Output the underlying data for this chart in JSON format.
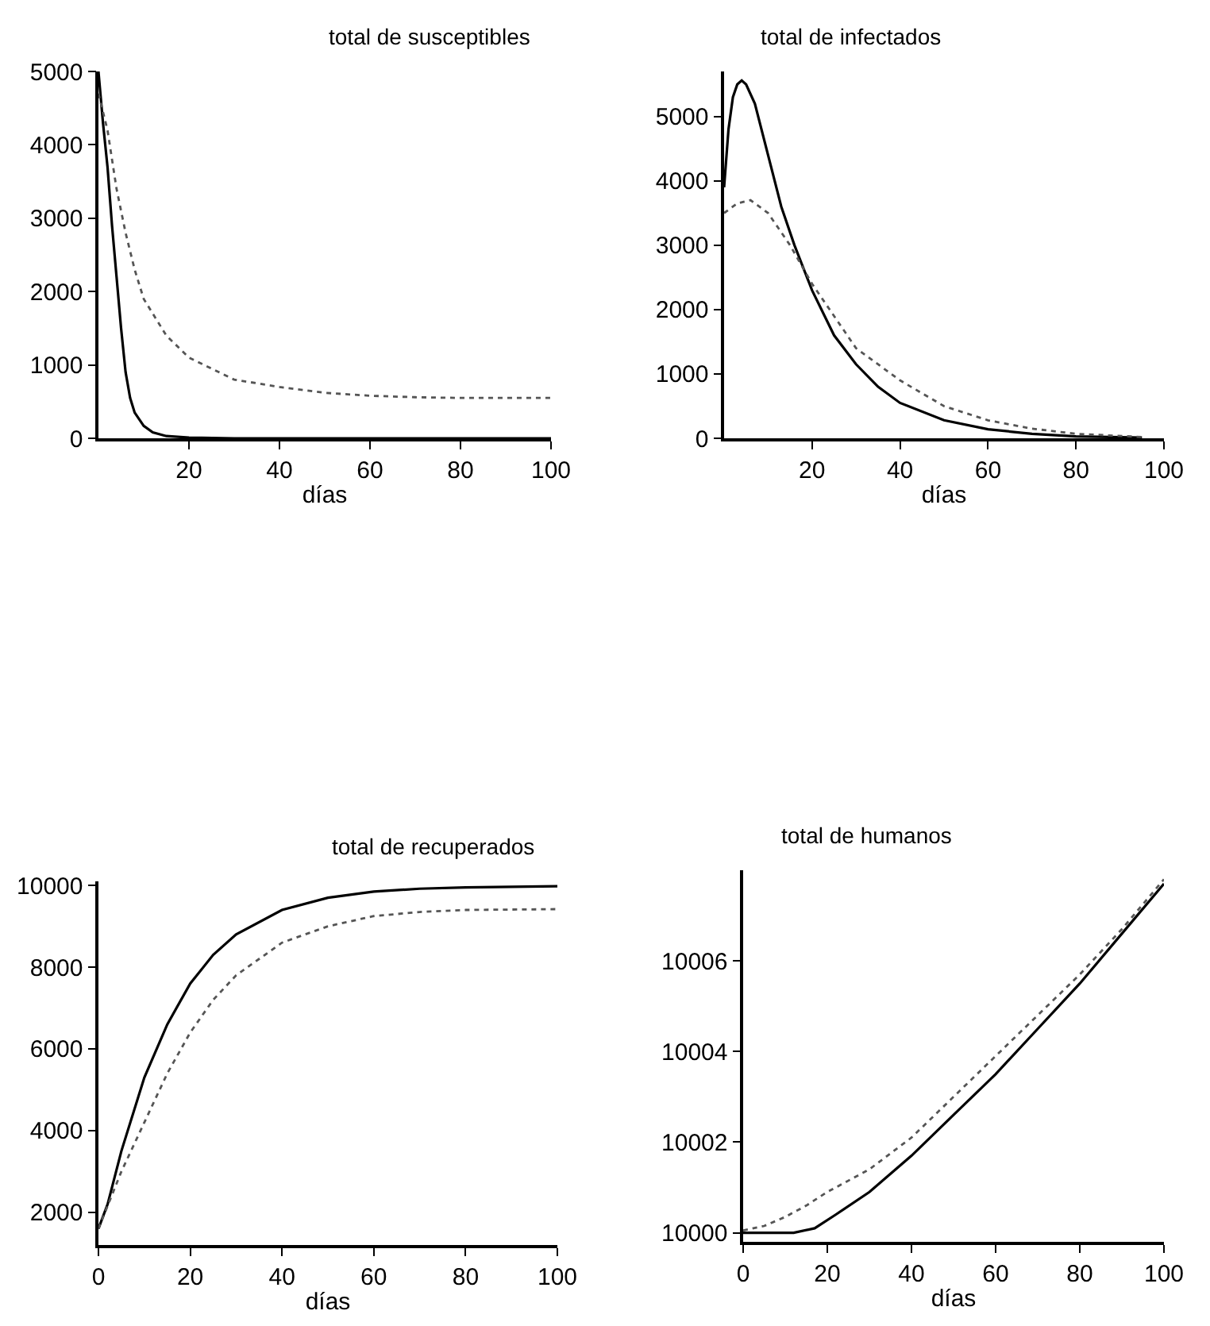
{
  "chart_data": [
    {
      "type": "line",
      "title": "total de susceptibles",
      "xlabel": "días",
      "xlim": [
        0,
        100
      ],
      "xticks": [
        20,
        40,
        60,
        80,
        100
      ],
      "ylim": [
        0,
        5000
      ],
      "yticks": [
        0,
        1000,
        2000,
        3000,
        4000,
        5000
      ],
      "marker": "none",
      "series": [
        {
          "color": "#000000",
          "line_style": "solid",
          "x": [
            0,
            1,
            2,
            3,
            4,
            5,
            6,
            7,
            8,
            10,
            12,
            15,
            20,
            30,
            100
          ],
          "values": [
            5000,
            4300,
            3700,
            2900,
            2200,
            1500,
            900,
            550,
            350,
            170,
            80,
            30,
            10,
            0,
            0
          ]
        },
        {
          "color": "#555555",
          "line_style": "dotted",
          "x": [
            0,
            2,
            4,
            6,
            8,
            10,
            15,
            20,
            25,
            30,
            40,
            50,
            60,
            70,
            80,
            100
          ],
          "values": [
            4700,
            4200,
            3400,
            2800,
            2300,
            1900,
            1400,
            1100,
            950,
            800,
            700,
            620,
            580,
            560,
            550,
            550
          ]
        }
      ]
    },
    {
      "type": "line",
      "title": "total de infectados",
      "xlabel": "días",
      "xlim": [
        0,
        100
      ],
      "xticks": [
        20,
        40,
        60,
        80,
        100
      ],
      "ylim": [
        0,
        5700
      ],
      "yticks": [
        0,
        1000,
        2000,
        3000,
        4000,
        5000
      ],
      "marker": "none",
      "series": [
        {
          "color": "#000000",
          "line_style": "solid",
          "x": [
            0,
            1,
            2,
            3,
            4,
            5,
            7,
            10,
            13,
            16,
            20,
            25,
            30,
            35,
            40,
            50,
            60,
            70,
            80,
            95
          ],
          "values": [
            3900,
            4800,
            5300,
            5500,
            5560,
            5500,
            5200,
            4400,
            3600,
            3000,
            2300,
            1600,
            1150,
            800,
            550,
            280,
            140,
            70,
            30,
            10
          ]
        },
        {
          "color": "#555555",
          "line_style": "dotted",
          "x": [
            0,
            3,
            6,
            10,
            15,
            20,
            25,
            30,
            40,
            50,
            60,
            70,
            80,
            95
          ],
          "values": [
            3500,
            3650,
            3700,
            3500,
            3000,
            2400,
            1900,
            1400,
            900,
            500,
            280,
            150,
            70,
            20
          ]
        }
      ]
    },
    {
      "type": "line",
      "title": "total de recuperados",
      "xlabel": "días",
      "xlim": [
        0,
        100
      ],
      "xticks": [
        0,
        20,
        40,
        60,
        80,
        100
      ],
      "ylim": [
        1200,
        10100
      ],
      "yticks": [
        2000,
        4000,
        6000,
        8000,
        10000
      ],
      "marker": "none",
      "series": [
        {
          "color": "#000000",
          "line_style": "solid",
          "x": [
            0,
            2,
            5,
            10,
            15,
            20,
            25,
            30,
            40,
            50,
            60,
            70,
            80,
            100
          ],
          "values": [
            1600,
            2200,
            3500,
            5300,
            6600,
            7600,
            8300,
            8800,
            9400,
            9700,
            9850,
            9920,
            9950,
            9980
          ]
        },
        {
          "color": "#555555",
          "line_style": "dotted",
          "x": [
            0,
            5,
            10,
            15,
            20,
            25,
            30,
            40,
            50,
            60,
            70,
            80,
            100
          ],
          "values": [
            1600,
            3000,
            4200,
            5400,
            6400,
            7200,
            7800,
            8600,
            9000,
            9250,
            9350,
            9400,
            9420
          ]
        }
      ]
    },
    {
      "type": "line",
      "title": "total de humanos",
      "xlabel": "días",
      "xlim": [
        0,
        100
      ],
      "xticks": [
        0,
        20,
        40,
        60,
        80,
        100
      ],
      "ylim": [
        9999.8,
        10008
      ],
      "yticks": [
        10000,
        10002,
        10004,
        10006
      ],
      "marker": "none",
      "series": [
        {
          "color": "#000000",
          "line_style": "solid",
          "x": [
            0,
            12,
            17,
            22,
            30,
            40,
            50,
            60,
            70,
            80,
            90,
            100
          ],
          "values": [
            10000,
            10000,
            10000.1,
            10000.4,
            10000.9,
            10001.7,
            10002.6,
            10003.5,
            10004.5,
            10005.5,
            10006.6,
            10007.7
          ]
        },
        {
          "color": "#555555",
          "line_style": "dotted",
          "x": [
            0,
            5,
            10,
            15,
            20,
            30,
            40,
            50,
            60,
            70,
            80,
            90,
            100
          ],
          "values": [
            10000.05,
            10000.15,
            10000.35,
            10000.6,
            10000.9,
            10001.4,
            10002.1,
            10003.0,
            10003.9,
            10004.8,
            10005.7,
            10006.7,
            10007.8
          ]
        }
      ]
    }
  ]
}
